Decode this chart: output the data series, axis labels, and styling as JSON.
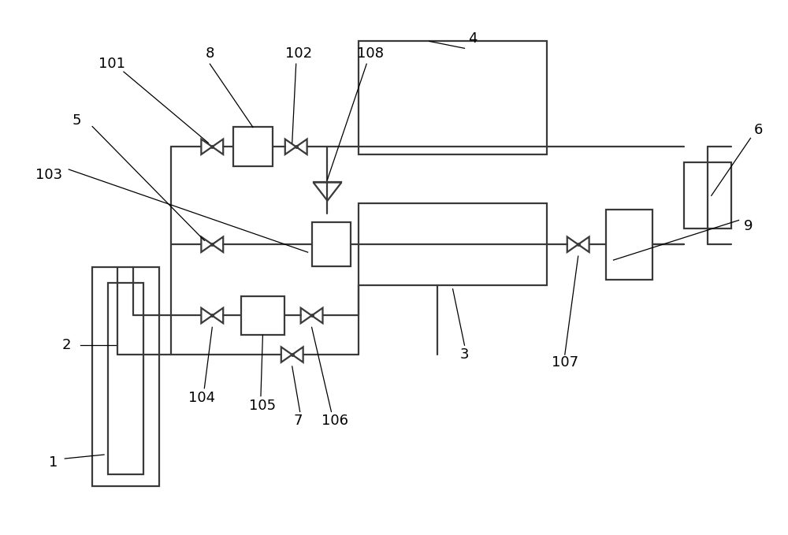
{
  "bg_color": "#ffffff",
  "line_color": "#3a3a3a",
  "line_width": 1.6,
  "fig_width": 10.0,
  "fig_height": 6.79
}
